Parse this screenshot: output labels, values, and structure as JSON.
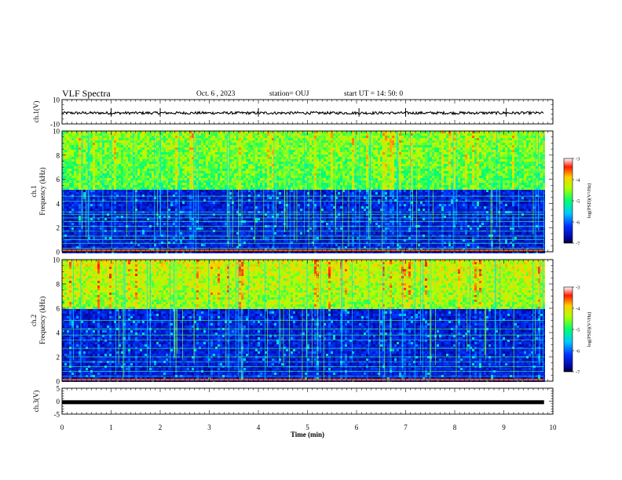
{
  "header": {
    "title": "VLF Spectra",
    "date": "Oct. 6 , 2023",
    "station": "station= OUJ",
    "start": "start UT =  14: 50: 0"
  },
  "chart_data": [
    {
      "type": "line",
      "panel": "ch1-waveform",
      "ylabel": "ch.1(V)",
      "yticks": [
        "10",
        "-10"
      ],
      "ylim": [
        -10,
        10
      ],
      "x_range": [
        0,
        9.82
      ],
      "trace_level": -1,
      "trace_noise": 1.0,
      "color": "#000000"
    },
    {
      "type": "heatmap",
      "panel": "ch1-spectrogram",
      "ylabel_line1": "ch.1",
      "ylabel_line2": "Frequency (kHz)",
      "yticks": [
        "0",
        "2",
        "4",
        "6",
        "8",
        "10"
      ],
      "ylim": [
        0,
        10
      ],
      "x_range": [
        0,
        9.82
      ],
      "colorbar_label": "log(PSD)(V²/Hz)",
      "colorbar_ticks": [
        "-3",
        "-4",
        "-5",
        "-6",
        "-7"
      ],
      "colorbar_range": [
        -7,
        -3
      ],
      "band_boundary_khz": 5.2,
      "lines_khz": [
        0.3,
        0.7,
        1.0,
        1.3,
        1.7,
        2.1,
        2.5,
        2.8,
        3.1,
        3.3,
        4.2,
        4.6,
        5.8
      ]
    },
    {
      "type": "heatmap",
      "panel": "ch2-spectrogram",
      "ylabel_line1": "ch.2",
      "ylabel_line2": "Frequency (kHz)",
      "yticks": [
        "0",
        "2",
        "4",
        "6",
        "8",
        "10"
      ],
      "ylim": [
        0,
        10
      ],
      "x_range": [
        0,
        9.82
      ],
      "colorbar_label": "log(PSD)(V²/Hz)",
      "colorbar_ticks": [
        "-3",
        "-4",
        "-5",
        "-6",
        "-7"
      ],
      "colorbar_range": [
        -7,
        -3
      ],
      "band_boundary_khz": 6.0,
      "lines_khz": [
        0.4,
        0.8,
        1.2,
        1.6,
        2.0,
        2.7,
        3.4,
        3.8,
        4.3,
        5.0
      ]
    },
    {
      "type": "line",
      "panel": "ch3-waveform",
      "ylabel": "ch.3(V)",
      "yticks": [
        "5",
        "0",
        "-5"
      ],
      "ylim": [
        -5,
        5
      ],
      "x_range": [
        0,
        9.82
      ],
      "trace_level": -0.4,
      "trace_noise": 0.0,
      "color": "#000000"
    }
  ],
  "xaxis": {
    "label": "Time (min)",
    "ticks": [
      "0",
      "1",
      "2",
      "3",
      "4",
      "5",
      "6",
      "7",
      "8",
      "9",
      "10"
    ],
    "range": [
      0,
      10
    ]
  }
}
